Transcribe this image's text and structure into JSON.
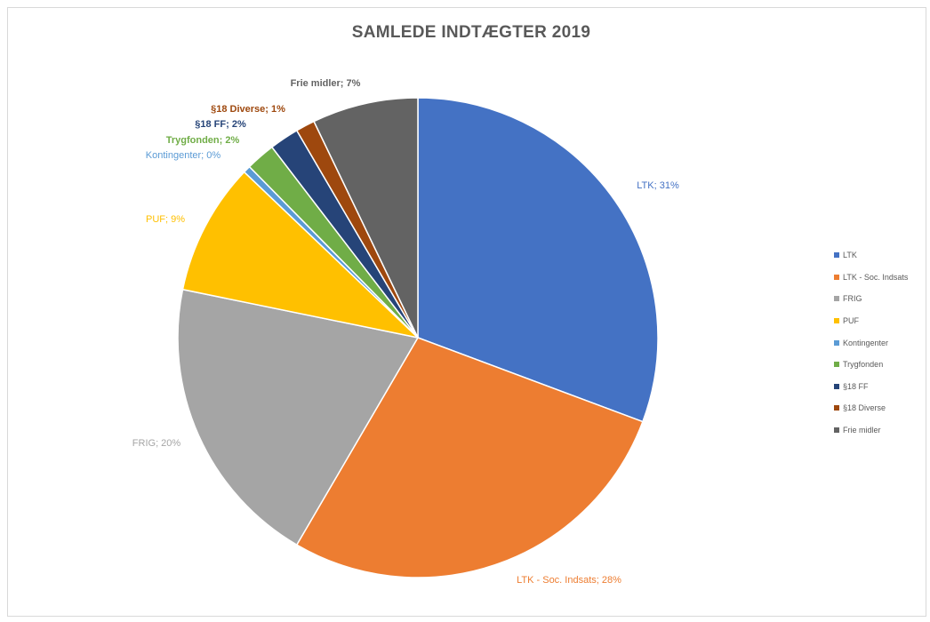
{
  "chart_data": {
    "type": "pie",
    "title": "SAMLEDE INDTÆGTER 2019",
    "slices": [
      {
        "name": "LTK",
        "value": 31,
        "label": "LTK; 31%",
        "color": "#4472C4"
      },
      {
        "name": "LTK - Soc. Indsats",
        "value": 28,
        "label": "LTK - Soc. Indsats; 28%",
        "color": "#ED7D31"
      },
      {
        "name": "FRIG",
        "value": 20,
        "label": "FRIG; 20%",
        "color": "#A5A5A5"
      },
      {
        "name": "PUF",
        "value": 9,
        "label": "PUF; 9%",
        "color": "#FFC000"
      },
      {
        "name": "Kontingenter",
        "value": 0.5,
        "label": "Kontingenter; 0%",
        "color": "#5B9BD5"
      },
      {
        "name": "Trygfonden",
        "value": 2,
        "label": "Trygfonden; 2%",
        "color": "#70AD47"
      },
      {
        "name": "§18 FF",
        "value": 2,
        "label": "§18 FF; 2%",
        "color": "#264478"
      },
      {
        "name": "§18 Diverse",
        "value": 1.3,
        "label": "§18 Diverse; 1%",
        "color": "#9E480E"
      },
      {
        "name": "Frie midler",
        "value": 7.2,
        "label": "Frie midler; 7%",
        "color": "#636363"
      }
    ],
    "legend": {
      "position": "right",
      "items": [
        "LTK",
        "LTK - Soc. Indsats",
        "FRIG",
        "PUF",
        "Kontingenter",
        "Trygfonden",
        "§18 FF",
        "§18 Diverse",
        "Frie midler"
      ]
    }
  }
}
